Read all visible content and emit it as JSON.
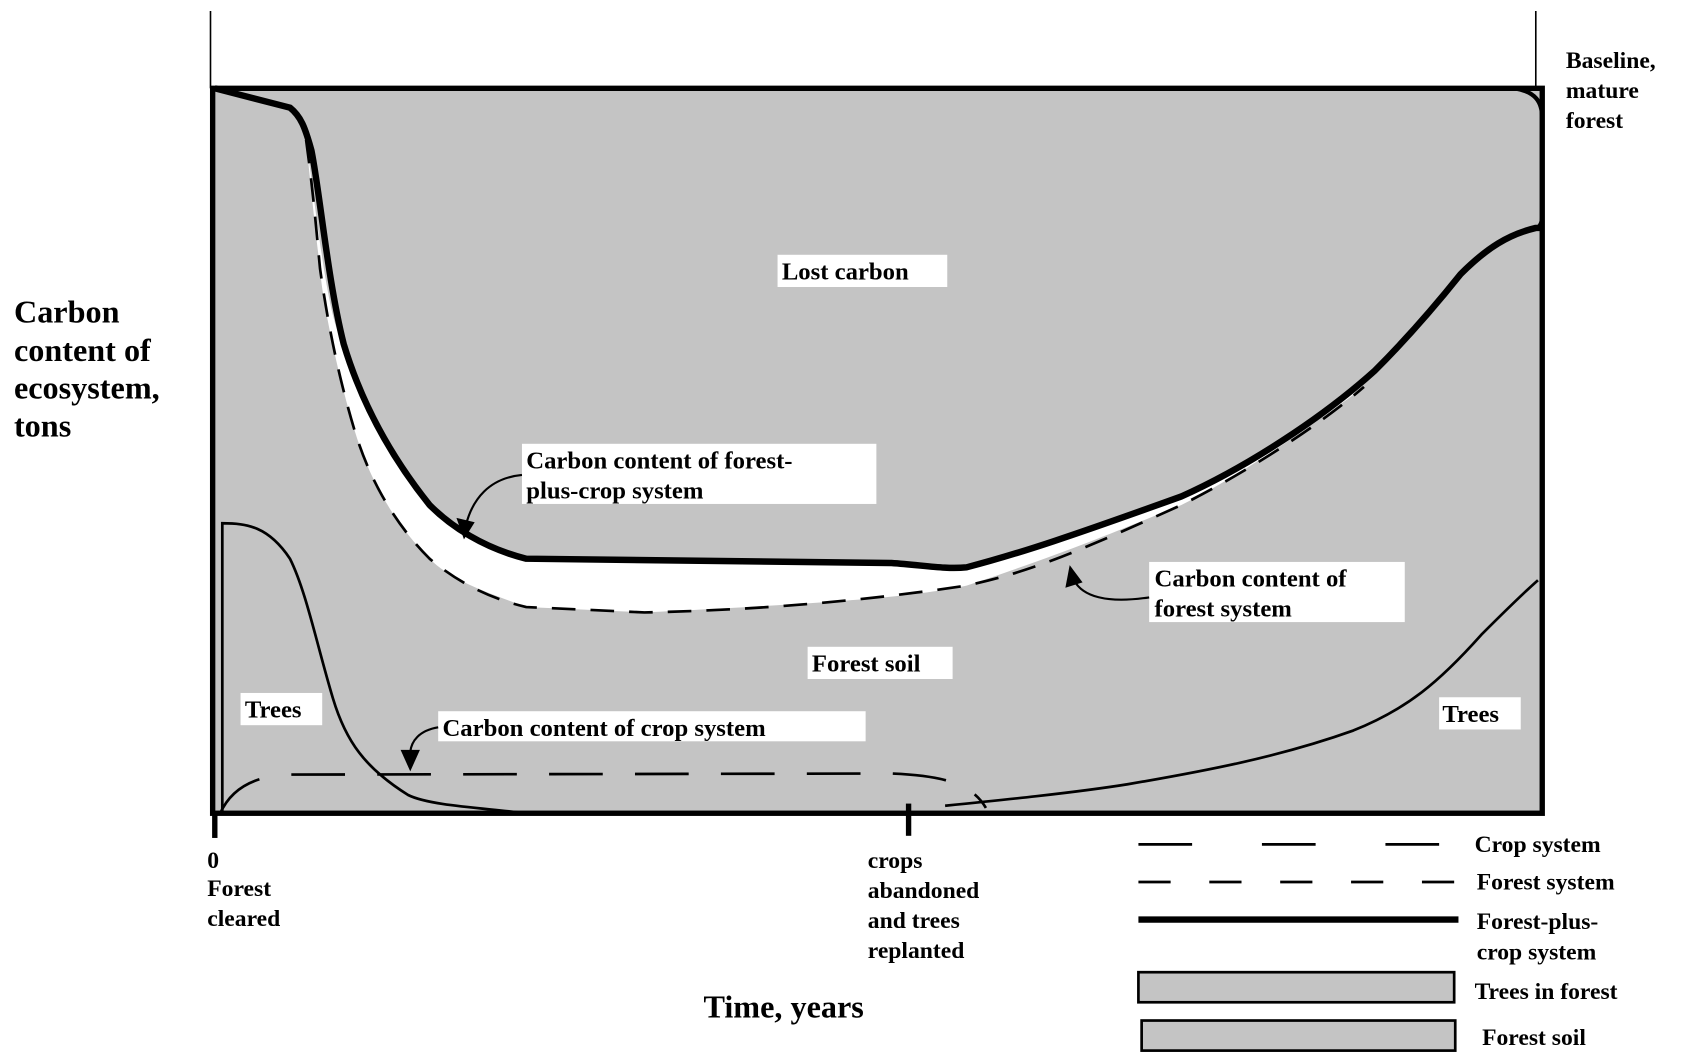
{
  "y_axis_label": [
    "Carbon",
    "content of",
    "ecosystem,",
    "tons"
  ],
  "x_axis_label": "Time, years",
  "baseline_label": [
    "Baseline,",
    "mature",
    "forest"
  ],
  "x_markers": [
    {
      "lines": [
        "0",
        "Forest",
        "cleared"
      ]
    },
    {
      "lines": [
        "crops",
        "abandoned",
        "and trees",
        "replanted"
      ]
    }
  ],
  "regions": {
    "lost_carbon": "Lost carbon",
    "forest_soil": "Forest soil",
    "trees_left": "Trees",
    "trees_right": "Trees"
  },
  "annotations": {
    "forest_plus_crop": [
      "Carbon content of forest-",
      "plus-crop system"
    ],
    "forest_system": [
      "Carbon content of",
      "forest system"
    ],
    "crop_system": "Carbon content of crop system"
  },
  "legend": {
    "crop_system": "Crop system",
    "forest_system": "Forest system",
    "forest_plus_crop": [
      "Forest-plus-",
      "crop system"
    ],
    "trees_in_forest": "Trees in forest",
    "forest_soil": "Forest soil"
  }
}
